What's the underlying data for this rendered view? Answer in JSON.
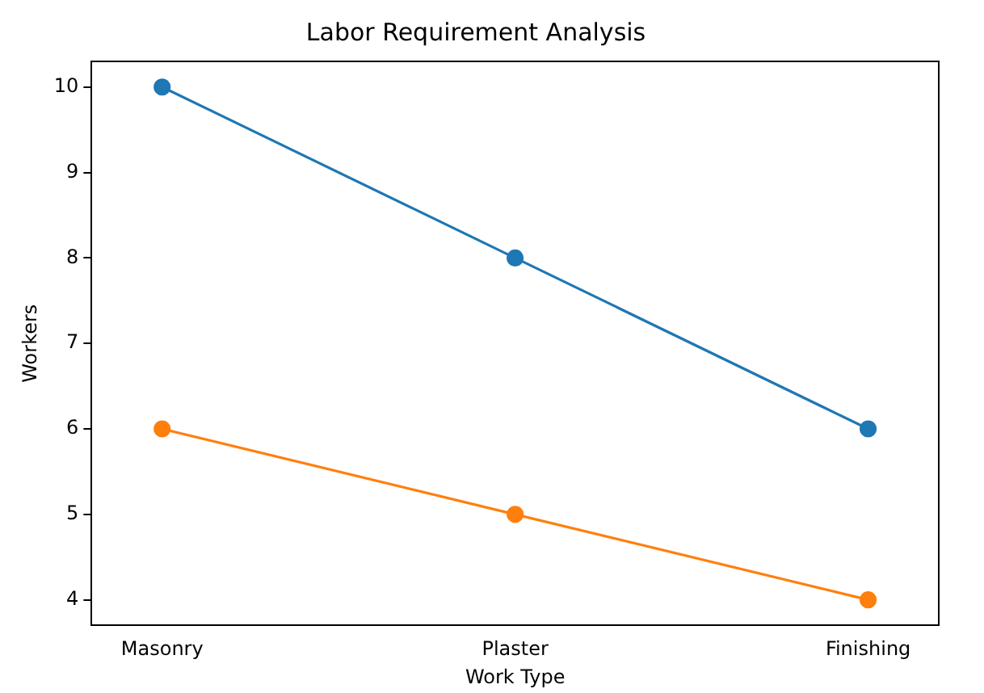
{
  "chart_data": {
    "type": "line",
    "title": "Labor Requirement Analysis",
    "xlabel": "Work Type",
    "ylabel": "Workers",
    "categories": [
      "Masonry",
      "Plaster",
      "Finishing"
    ],
    "series": [
      {
        "color": "#1f77b4",
        "values": [
          10,
          8,
          6
        ]
      },
      {
        "color": "#ff7f0e",
        "values": [
          6,
          5,
          4
        ]
      }
    ],
    "ylim": [
      3.7,
      10.3
    ],
    "yticks": [
      4,
      5,
      6,
      7,
      8,
      9,
      10
    ],
    "grid": false,
    "legend": false,
    "marker": "circle",
    "line_style": "solid"
  }
}
